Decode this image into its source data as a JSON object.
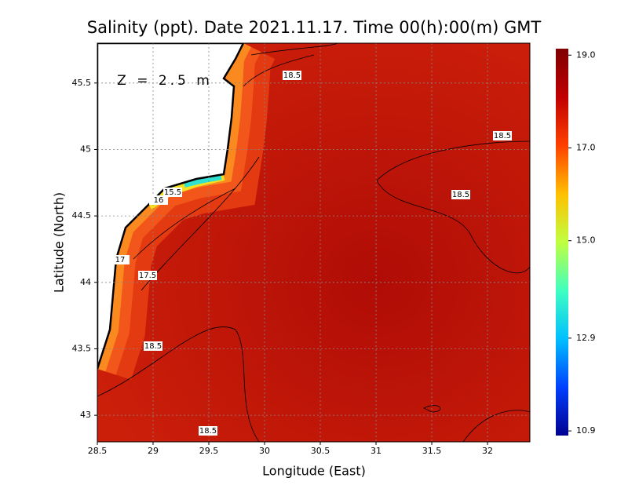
{
  "chart_data": {
    "type": "map",
    "title": "Salinity (ppt). Date 2021.11.17. Time 00(h):00(m) GMT",
    "annotation": "Z = 2.5 m",
    "x_label": "Longitude (East)",
    "y_label": "Latitude (North)",
    "xlim": [
      28.5,
      32.38
    ],
    "ylim": [
      42.8,
      45.8
    ],
    "xticks": [
      28.5,
      29,
      29.5,
      30,
      30.5,
      31,
      31.5,
      32
    ],
    "yticks": [
      43,
      43.5,
      44,
      44.5,
      45,
      45.5
    ],
    "grid": true,
    "colorbar_lim": [
      10.8,
      19.14
    ],
    "colorbar_ticks": [
      {
        "value": 19,
        "label": "19.0"
      },
      {
        "value": 17,
        "label": "17.0"
      },
      {
        "value": 15,
        "label": "15.0"
      },
      12.9,
      10.9
    ],
    "colormap": [
      "#00008f",
      "#0040ff",
      "#00c0ff",
      "#40ffc0",
      "#c0ff40",
      "#ffc000",
      "#ff4000",
      "#c00000",
      "#800000"
    ],
    "contour_labels": [
      18.5,
      18.5,
      18.5,
      15.5,
      16,
      17,
      17.5,
      18.5,
      18.5
    ]
  }
}
